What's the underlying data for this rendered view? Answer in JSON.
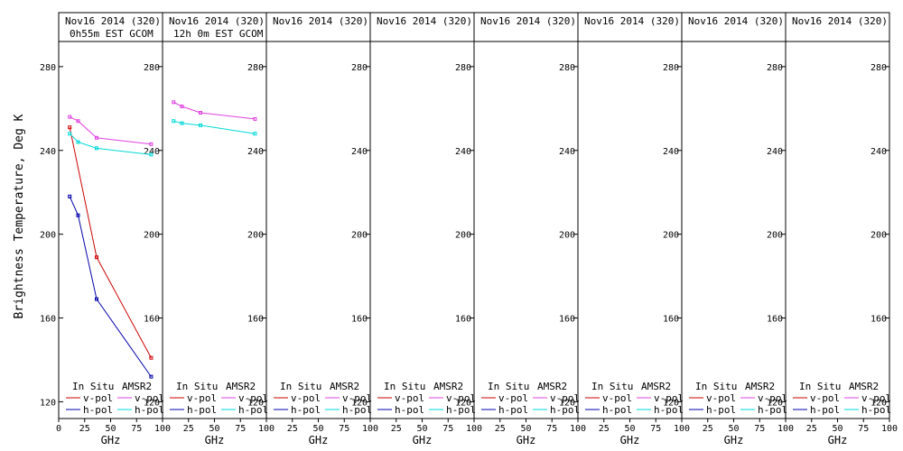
{
  "colors": {
    "insitu_v": "#cc0000",
    "insitu_h": "#0000aa",
    "amsr2_v": "#e040e0",
    "amsr2_h": "#00d8d8",
    "frame": "#000000",
    "background": "#ffffff"
  },
  "chart_data": {
    "type": "line",
    "ylabel": "Brightness Temperature, Deg K",
    "ylim": [
      112,
      292
    ],
    "yticks": [
      120,
      160,
      200,
      240,
      280
    ],
    "xlim": [
      0,
      100
    ],
    "xticks": [
      0,
      25,
      50,
      75,
      100
    ],
    "grid": false,
    "legend": {
      "placement": "bottom",
      "groups": [
        {
          "title": "In Situ",
          "entries": [
            {
              "label": "v-pol",
              "color_key": "insitu_v"
            },
            {
              "label": "h-pol",
              "color_key": "insitu_h"
            }
          ]
        },
        {
          "title": "AMSR2",
          "entries": [
            {
              "label": "v-pol",
              "color_key": "amsr2_v"
            },
            {
              "label": "h-pol",
              "color_key": "amsr2_h"
            }
          ]
        }
      ]
    },
    "panels": [
      {
        "title_line1": "Nov16 2014 (320)",
        "title_line2": "0h55m EST GCOM",
        "xlabel": "GHz",
        "series": [
          {
            "name": "In Situ v-pol",
            "color_key": "insitu_v",
            "x": [
              10.65,
              36.5,
              89.0
            ],
            "y": [
              251,
              189,
              141
            ]
          },
          {
            "name": "In Situ h-pol",
            "color_key": "insitu_h",
            "x": [
              10.65,
              18.7,
              36.5,
              89.0
            ],
            "y": [
              218,
              209,
              169,
              132
            ]
          },
          {
            "name": "AMSR2 v-pol",
            "color_key": "amsr2_v",
            "x": [
              10.65,
              18.7,
              36.5,
              89.0
            ],
            "y": [
              256,
              254,
              246,
              243
            ]
          },
          {
            "name": "AMSR2 h-pol",
            "color_key": "amsr2_h",
            "x": [
              10.65,
              18.7,
              36.5,
              89.0
            ],
            "y": [
              248,
              244,
              241,
              238
            ]
          }
        ]
      },
      {
        "title_line1": "Nov16 2014 (320)",
        "title_line2": "12h 0m EST GCOM",
        "xlabel": "GHz",
        "series": [
          {
            "name": "AMSR2 v-pol",
            "color_key": "amsr2_v",
            "x": [
              10.65,
              18.7,
              36.5,
              89.0
            ],
            "y": [
              263,
              261,
              258,
              255
            ]
          },
          {
            "name": "AMSR2 h-pol",
            "color_key": "amsr2_h",
            "x": [
              10.65,
              18.7,
              36.5,
              89.0
            ],
            "y": [
              254,
              253,
              252,
              248
            ]
          }
        ]
      },
      {
        "title_line1": "Nov16 2014 (320)",
        "title_line2": "",
        "xlabel": "GHz",
        "series": []
      },
      {
        "title_line1": "Nov16 2014 (320)",
        "title_line2": "",
        "xlabel": "GHz",
        "series": []
      },
      {
        "title_line1": "Nov16 2014 (320)",
        "title_line2": "",
        "xlabel": "GHz",
        "series": []
      },
      {
        "title_line1": "Nov16 2014 (320)",
        "title_line2": "",
        "xlabel": "GHz",
        "series": []
      },
      {
        "title_line1": "Nov16 2014 (320)",
        "title_line2": "",
        "xlabel": "GHz",
        "series": []
      },
      {
        "title_line1": "Nov16 2014 (320)",
        "title_line2": "",
        "xlabel": "GHz",
        "series": []
      }
    ]
  }
}
